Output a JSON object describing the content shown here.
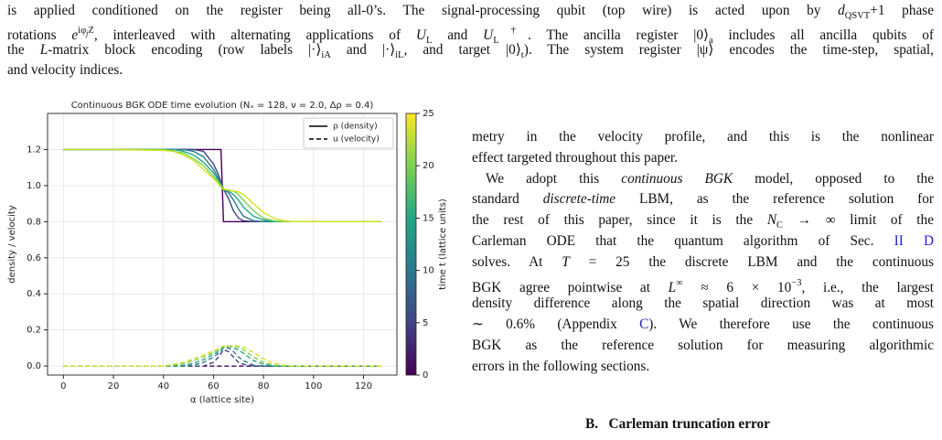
{
  "top_paragraph": {
    "lines": [
      [
        "is applied conditioned on the register being all-0’s. The signal-processing qubit (top wire) is acted upon by ",
        {
          "text": "d",
          "style": "i"
        },
        {
          "text": "QSVT",
          "style": "sub"
        },
        "+1 phase"
      ],
      [
        "rotations ",
        {
          "text": "e",
          "style": "i"
        },
        {
          "text": "iφ",
          "style": "sup"
        },
        {
          "text": "j",
          "style": "subsup"
        },
        {
          "text": "Z",
          "style": "sup"
        },
        ", interleaved with alternating applications of ",
        {
          "text": "U",
          "style": "i"
        },
        {
          "text": "L",
          "style": "sub"
        },
        " and ",
        {
          "text": "U",
          "style": "i"
        },
        {
          "text": "L",
          "style": "sub"
        },
        {
          "text": "†",
          "style": "sup"
        },
        ". The ancilla register |0⟩",
        {
          "text": "a",
          "style": "sub"
        },
        " includes all ancilla qubits of"
      ],
      [
        "the ",
        {
          "text": "L",
          "style": "i"
        },
        "-matrix block encoding (row labels |·⟩",
        {
          "text": "iA",
          "style": "sub"
        },
        " and |·⟩",
        {
          "text": "iL",
          "style": "sub"
        },
        ", and target |0⟩",
        {
          "text": "t",
          "style": "sub"
        },
        "). The system register |ψ⟩ encodes the time-step, spatial,"
      ],
      [
        "and velocity indices."
      ]
    ]
  },
  "chart_data": {
    "type": "line",
    "title": "Continuous BGK ODE time evolution (Nₓ = 128, ν = 2.0, Δρ = 0.4)",
    "xlabel": "α (lattice site)",
    "ylabel": "density / velocity",
    "x": [
      0,
      20,
      40,
      44,
      48,
      52,
      56,
      60,
      62,
      63,
      64,
      66,
      68,
      70,
      72,
      76,
      80,
      84,
      88,
      92,
      100,
      127
    ],
    "xlim": [
      -6.35,
      133.35
    ],
    "ylim": [
      -0.05,
      1.4
    ],
    "xticks": [
      0,
      20,
      40,
      60,
      80,
      100,
      120
    ],
    "yticks": [
      {
        "value": 0,
        "label": "0.0"
      },
      0.2,
      0.4,
      0.6,
      0.8,
      {
        "value": 1,
        "label": "1.0"
      },
      1.2
    ],
    "grid": true,
    "legend": "upper right",
    "series": [
      {
        "name": "ρ (density)",
        "style": "solid",
        "curves": [
          {
            "color": "#440154",
            "values": [
              1.2,
              1.2,
              1.2,
              1.2,
              1.2,
              1.2,
              1.2,
              1.2,
              1.2,
              1.2,
              0.8,
              0.8,
              0.8,
              0.8,
              0.8,
              0.8,
              0.8,
              0.8,
              0.8,
              0.8,
              0.8,
              0.8
            ]
          },
          {
            "color": "#414487",
            "values": [
              1.2,
              1.2,
              1.2,
              1.2,
              1.2,
              1.2,
              1.19,
              1.12,
              1.06,
              1.02,
              0.98,
              0.93,
              0.86,
              0.82,
              0.805,
              0.8,
              0.8,
              0.8,
              0.8,
              0.8,
              0.8,
              0.8
            ]
          },
          {
            "color": "#2a788e",
            "values": [
              1.2,
              1.2,
              1.2,
              1.2,
              1.2,
              1.19,
              1.16,
              1.09,
              1.04,
              1.01,
              0.98,
              0.96,
              0.92,
              0.87,
              0.83,
              0.805,
              0.8,
              0.8,
              0.8,
              0.8,
              0.8,
              0.8
            ]
          },
          {
            "color": "#22a884",
            "values": [
              1.2,
              1.2,
              1.2,
              1.2,
              1.19,
              1.17,
              1.13,
              1.07,
              1.03,
              1.0,
              0.98,
              0.97,
              0.95,
              0.92,
              0.88,
              0.83,
              0.81,
              0.8,
              0.8,
              0.8,
              0.8,
              0.8
            ]
          },
          {
            "color": "#7ad151",
            "values": [
              1.2,
              1.2,
              1.2,
              1.19,
              1.18,
              1.15,
              1.11,
              1.05,
              1.02,
              1.0,
              0.98,
              0.975,
              0.97,
              0.95,
              0.92,
              0.86,
              0.82,
              0.805,
              0.8,
              0.8,
              0.8,
              0.8
            ]
          },
          {
            "color": "#d2e21b",
            "values": [
              1.2,
              1.2,
              1.195,
              1.19,
              1.17,
              1.14,
              1.09,
              1.04,
              1.01,
              0.99,
              0.98,
              0.975,
              0.97,
              0.965,
              0.95,
              0.9,
              0.85,
              0.82,
              0.805,
              0.8,
              0.8,
              0.8
            ]
          }
        ]
      },
      {
        "name": "u (velocity)",
        "style": "dashed",
        "curves": [
          {
            "color": "#440154",
            "values": [
              0,
              0,
              0,
              0,
              0,
              0,
              0,
              0,
              0,
              0,
              0,
              0,
              0,
              0,
              0,
              0,
              0,
              0,
              0,
              0,
              0,
              0
            ]
          },
          {
            "color": "#414487",
            "values": [
              0,
              0,
              0,
              0,
              0,
              0,
              0,
              0.02,
              0.05,
              0.07,
              0.09,
              0.08,
              0.05,
              0.02,
              0.01,
              0,
              0,
              0,
              0,
              0,
              0,
              0
            ]
          },
          {
            "color": "#2a788e",
            "values": [
              0,
              0,
              0,
              0,
              0,
              0.005,
              0.02,
              0.05,
              0.07,
              0.085,
              0.1,
              0.1,
              0.08,
              0.05,
              0.03,
              0.005,
              0,
              0,
              0,
              0,
              0,
              0
            ]
          },
          {
            "color": "#22a884",
            "values": [
              0,
              0,
              0,
              0,
              0.005,
              0.015,
              0.035,
              0.065,
              0.08,
              0.09,
              0.105,
              0.11,
              0.1,
              0.09,
              0.07,
              0.03,
              0.01,
              0,
              0,
              0,
              0,
              0
            ]
          },
          {
            "color": "#7ad151",
            "values": [
              0,
              0,
              0,
              0.005,
              0.015,
              0.03,
              0.05,
              0.075,
              0.09,
              0.1,
              0.11,
              0.11,
              0.11,
              0.105,
              0.09,
              0.05,
              0.02,
              0.005,
              0,
              0,
              0,
              0
            ]
          },
          {
            "color": "#d2e21b",
            "values": [
              0,
              0,
              0,
              0.01,
              0.02,
              0.04,
              0.06,
              0.085,
              0.095,
              0.105,
              0.11,
              0.11,
              0.115,
              0.11,
              0.105,
              0.075,
              0.04,
              0.015,
              0.005,
              0,
              0,
              0
            ]
          }
        ]
      }
    ],
    "colorbar": {
      "label": "time t (lattice units)",
      "lim": [
        0,
        25
      ],
      "ticks": [
        0,
        5,
        10,
        15,
        20,
        25
      ]
    }
  },
  "right_column": {
    "lines": [
      [
        "metry in the velocity profile, and this is the nonlinear"
      ],
      [
        "effect targeted throughout this paper."
      ],
      [
        "We adopt this ",
        {
          "text": "continuous BGK",
          "style": "i"
        },
        " model, opposed to the"
      ],
      [
        "standard ",
        {
          "text": "discrete-time",
          "style": "i"
        },
        " LBM, as the reference solution for"
      ],
      [
        "the rest of this paper, since it is the ",
        {
          "text": "N",
          "style": "i"
        },
        {
          "text": "C",
          "style": "sub"
        },
        " → ∞ limit of the"
      ],
      [
        "Carleman ODE that the quantum algorithm of Sec. ",
        {
          "text": "II D",
          "style": "link"
        }
      ],
      [
        "solves. At ",
        {
          "text": "T",
          "style": "i"
        },
        " = 25 the discrete LBM and the continuous"
      ],
      [
        "BGK agree pointwise at ",
        {
          "text": "L",
          "style": "i"
        },
        {
          "text": "∞",
          "style": "sup"
        },
        " ≈ 6 × 10",
        {
          "text": "−3",
          "style": "sup"
        },
        ", i.e., the largest"
      ],
      [
        "density difference along the spatial direction was at most"
      ],
      [
        "∼ 0.6% (Appendix ",
        {
          "text": "C",
          "style": "link"
        },
        "). We therefore use the continuous"
      ],
      [
        "BGK as the reference solution for measuring algorithmic"
      ],
      [
        "errors in the following sections."
      ]
    ]
  },
  "section_heading": {
    "number": "B.",
    "title": "Carleman truncation error"
  }
}
